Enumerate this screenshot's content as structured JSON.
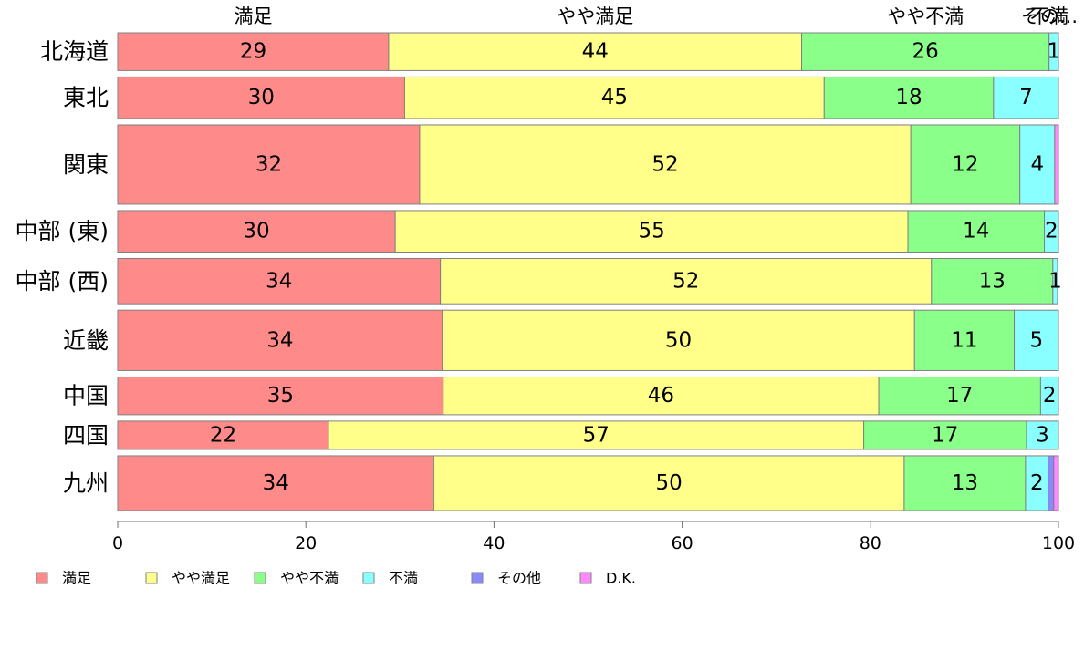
{
  "chart_data": {
    "type": "bar",
    "orientation": "horizontal",
    "stacked": true,
    "categories": [
      "北海道",
      "東北",
      "関東",
      "中部 (東)",
      "中部 (西)",
      "近畿",
      "中国",
      "四国",
      "九州"
    ],
    "series": [
      {
        "name": "満足",
        "color": "#ff8a8a",
        "values": [
          28.8,
          30.5,
          32.1,
          29.5,
          34.3,
          34.5,
          34.6,
          22.4,
          33.6
        ]
      },
      {
        "name": "やや満足",
        "color": "#ffff8a",
        "values": [
          43.9,
          44.6,
          52.2,
          54.5,
          52.2,
          50.2,
          46.3,
          56.9,
          50.0
        ]
      },
      {
        "name": "やや不満",
        "color": "#8aff8a",
        "values": [
          26.3,
          18.0,
          11.6,
          14.5,
          12.9,
          10.6,
          17.2,
          17.3,
          12.9
        ]
      },
      {
        "name": "不満",
        "color": "#8affff",
        "values": [
          1.0,
          6.9,
          3.7,
          1.5,
          0.5,
          4.7,
          1.9,
          3.4,
          2.4
        ]
      },
      {
        "name": "その他",
        "color": "#8a8aff",
        "values": [
          0,
          0,
          0,
          0,
          0,
          0,
          0,
          0,
          0.6
        ]
      },
      {
        "name": "D.K.",
        "color": "#ff8aff",
        "values": [
          0,
          0,
          0.4,
          0,
          0,
          0,
          0,
          0,
          0.5
        ]
      }
    ],
    "segment_labels": [
      [
        "29",
        "44",
        "26",
        "1",
        "",
        ""
      ],
      [
        "30",
        "45",
        "18",
        "7",
        "",
        ""
      ],
      [
        "32",
        "52",
        "12",
        "4",
        "",
        ""
      ],
      [
        "30",
        "55",
        "14",
        "2",
        "",
        ""
      ],
      [
        "34",
        "52",
        "13",
        "1",
        "",
        ""
      ],
      [
        "34",
        "50",
        "11",
        "5",
        "",
        ""
      ],
      [
        "35",
        "46",
        "17",
        "2",
        "",
        ""
      ],
      [
        "22",
        "57",
        "17",
        "3",
        "",
        ""
      ],
      [
        "34",
        "50",
        "13",
        "2",
        "",
        ""
      ]
    ],
    "top_labels": [
      "満足",
      "やや満足",
      "やや不満",
      "不満",
      "その..."
    ],
    "bar_weights": [
      1,
      1.1,
      2.1,
      1.1,
      1.2,
      1.6,
      1,
      0.75,
      1.45
    ],
    "xlim": [
      0,
      100
    ],
    "xticks": [
      0,
      20,
      40,
      60,
      80,
      100
    ],
    "xlabel": "",
    "ylabel": "",
    "grid": false,
    "legend_position": "bottom"
  }
}
